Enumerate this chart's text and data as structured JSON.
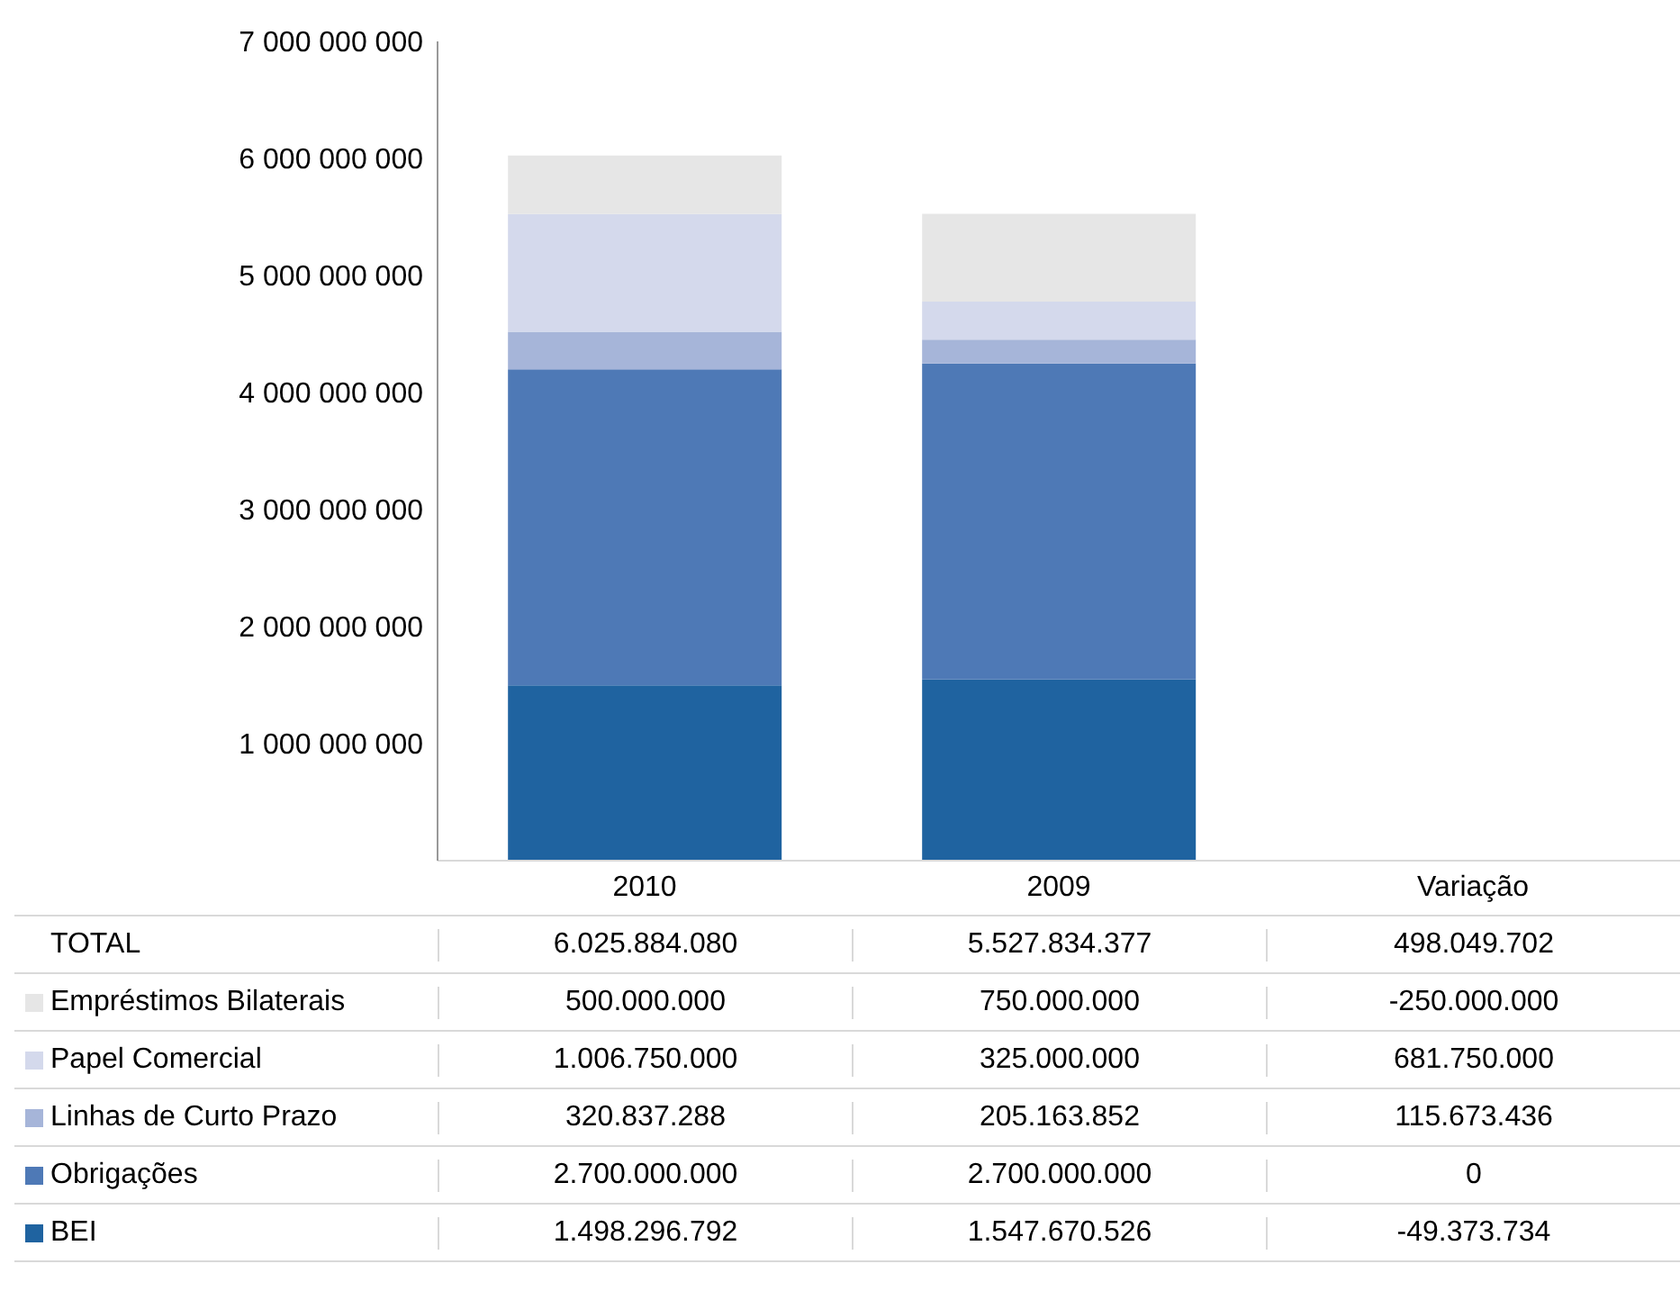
{
  "chart_data": {
    "type": "bar",
    "stacked": true,
    "legend": "bottom",
    "categories": [
      "2010",
      "2009",
      "Variação"
    ],
    "ylim": [
      0,
      7000000000
    ],
    "yticks": [
      {
        "value": 0,
        "label": null
      },
      {
        "value": 1000000000,
        "label": "1 000 000 000"
      },
      {
        "value": 2000000000,
        "label": "2 000 000 000"
      },
      {
        "value": 3000000000,
        "label": "3 000 000 000"
      },
      {
        "value": 4000000000,
        "label": "4 000 000 000"
      },
      {
        "value": 5000000000,
        "label": "5 000 000 000"
      },
      {
        "value": 6000000000,
        "label": "6 000 000 000"
      },
      {
        "value": 7000000000,
        "label": "7 000 000 000"
      }
    ],
    "series": [
      {
        "name": "BEI",
        "color": "#1f63a0",
        "values": [
          1498296792,
          1547670526,
          null
        ],
        "value_labels": [
          "1.498.296.792",
          "1.547.670.526",
          "-49.373.734"
        ]
      },
      {
        "name": "Obrigações",
        "color": "#4e79b6",
        "values": [
          2700000000,
          2700000000,
          null
        ],
        "value_labels": [
          "2.700.000.000",
          "2.700.000.000",
          "0"
        ]
      },
      {
        "name": "Linhas de  Curto Prazo",
        "color": "#a6b5d9",
        "values": [
          320837288,
          205163852,
          null
        ],
        "value_labels": [
          "320.837.288",
          "205.163.852",
          "115.673.436"
        ]
      },
      {
        "name": "Papel Comercial",
        "color": "#d4d9ec",
        "values": [
          1006750000,
          325000000,
          null
        ],
        "value_labels": [
          "1.006.750.000",
          "325.000.000",
          "681.750.000"
        ]
      },
      {
        "name": "Empréstimos Bilaterais",
        "color": "#e6e6e6",
        "values": [
          500000000,
          750000000,
          null
        ],
        "value_labels": [
          "500.000.000",
          "750.000.000",
          "-250.000.000"
        ]
      }
    ],
    "annotations": [
      "TOTAL",
      "498.049.702"
    ],
    "totals": [
      "6.025.884.080",
      "5.527.834.377",
      null
    ]
  }
}
